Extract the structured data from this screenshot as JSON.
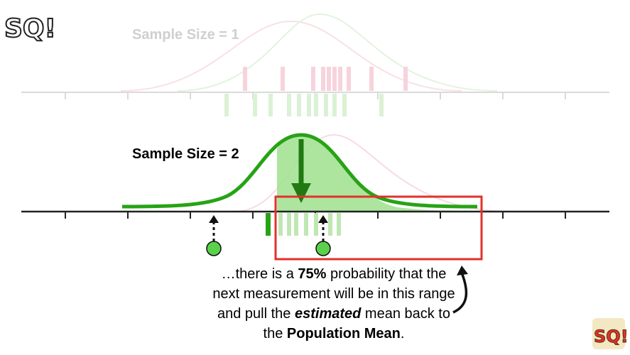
{
  "top_label": "Sample Size = 1",
  "mid_label": "Sample Size = 2",
  "caption": {
    "line1_pre": "…there is a ",
    "line1_bold": "75%",
    "line1_post": " probability that the",
    "line2": "next measurement will be in this range",
    "line3_pre": "and pull the ",
    "line3_bold_italic": "estimated",
    "line3_post": " mean back to",
    "line4_pre": "the ",
    "line4_bold": "Population Mean",
    "line4_post": "."
  },
  "logo_text": "SQ!",
  "colors": {
    "green": "#27a316",
    "light_green": "#9be08a",
    "pink": "#f2b6c4",
    "red_box": "#e0322a",
    "axis": "#222222",
    "faded_axis": "#cccccc",
    "dot": "#5ad14a"
  }
}
